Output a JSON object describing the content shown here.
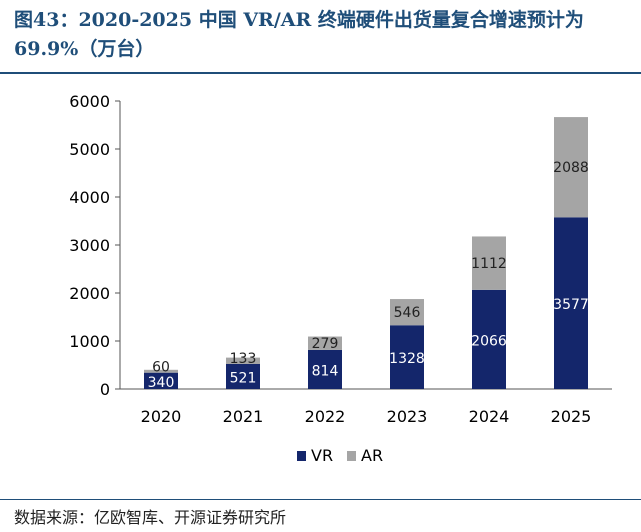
{
  "header": {
    "title": "图43：2020-2025 中国 VR/AR 终端硬件出货量复合增速预计为 69.9%（万台）"
  },
  "source": "数据来源：亿欧智库、开源证券研究所",
  "colors": {
    "vr": "#14266b",
    "ar": "#a5a5a5",
    "title": "#1f4e79"
  },
  "chart_data": {
    "type": "bar",
    "stacked": true,
    "categories": [
      "2020",
      "2021",
      "2022",
      "2023",
      "2024",
      "2025"
    ],
    "series": [
      {
        "name": "VR",
        "values": [
          340,
          521,
          814,
          1328,
          2066,
          3577
        ]
      },
      {
        "name": "AR",
        "values": [
          60,
          133,
          279,
          546,
          1112,
          2088
        ]
      }
    ],
    "yticks": [
      0,
      1000,
      2000,
      3000,
      4000,
      5000,
      6000
    ],
    "ylim": [
      0,
      6000
    ],
    "grid": false,
    "legend": "bottom"
  }
}
